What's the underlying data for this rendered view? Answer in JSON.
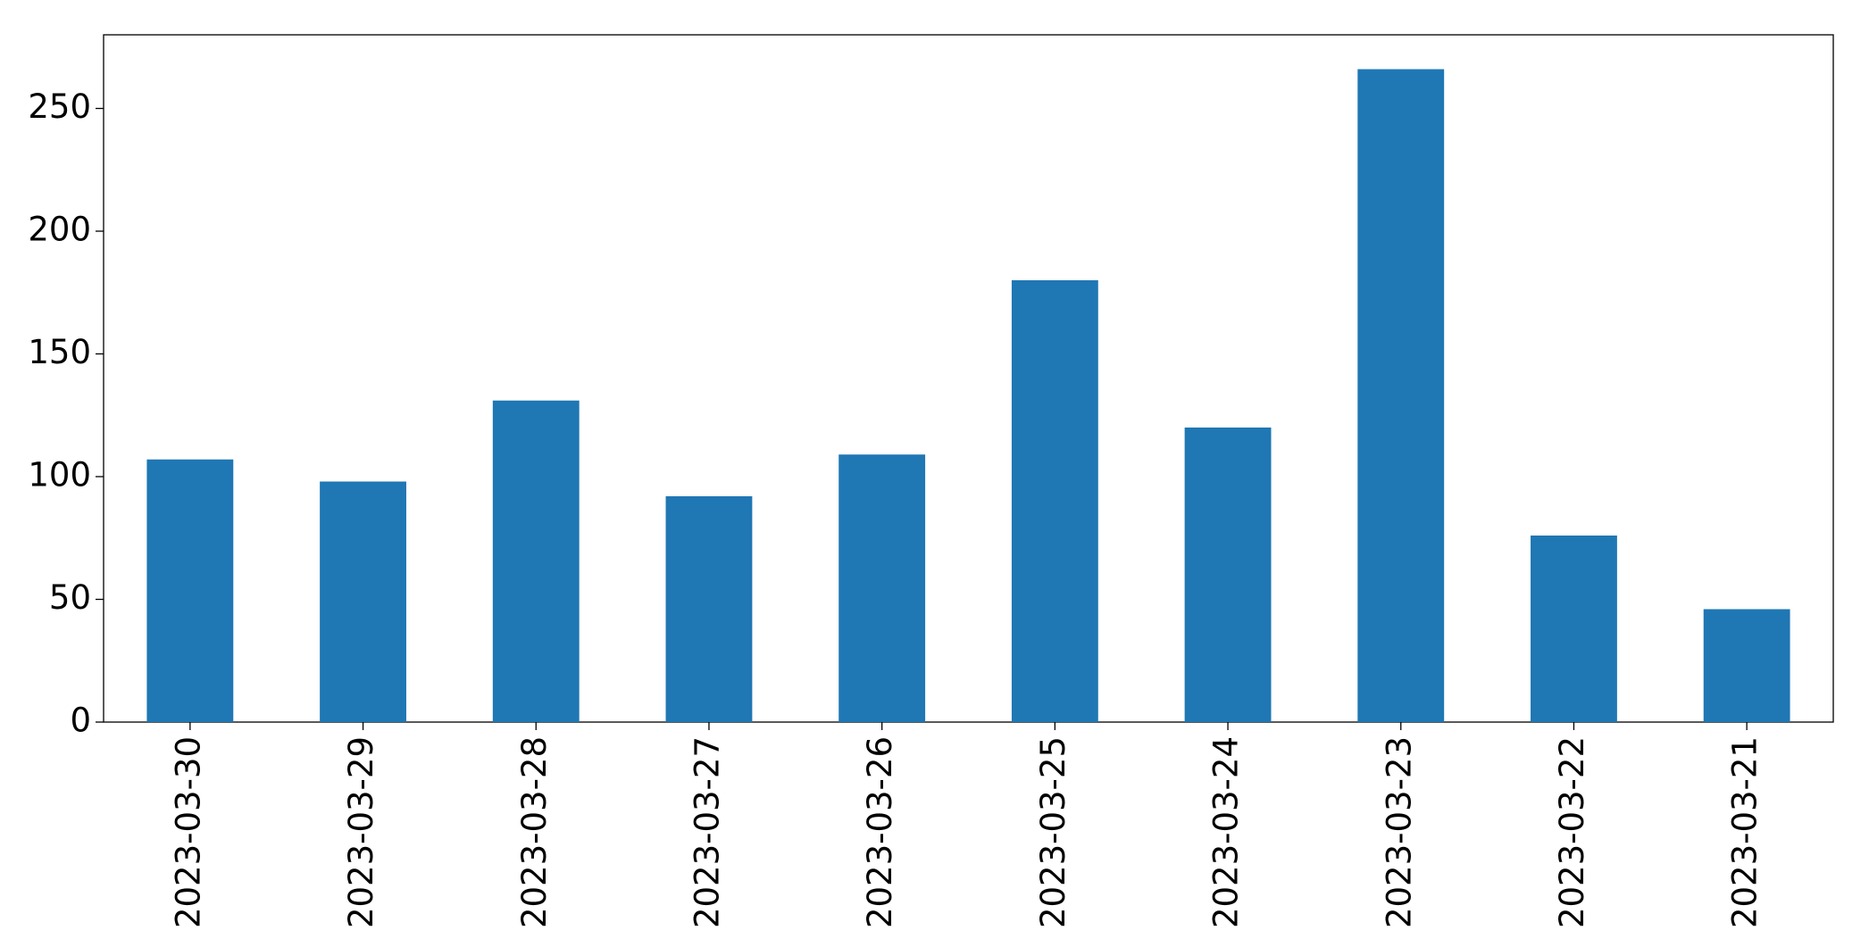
{
  "chart_data": {
    "type": "bar",
    "categories": [
      "2023-03-30",
      "2023-03-29",
      "2023-03-28",
      "2023-03-27",
      "2023-03-26",
      "2023-03-25",
      "2023-03-24",
      "2023-03-23",
      "2023-03-22",
      "2023-03-21"
    ],
    "values": [
      107,
      98,
      131,
      92,
      109,
      180,
      120,
      266,
      76,
      46
    ],
    "color": "#1f77b4",
    "ylim": [
      0,
      280
    ],
    "yticks": [
      0,
      50,
      100,
      150,
      200,
      250
    ],
    "grid": false
  }
}
